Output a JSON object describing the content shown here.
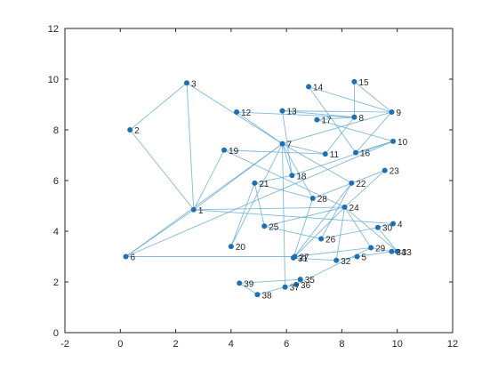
{
  "chart_data": {
    "type": "scatter",
    "title": "",
    "xlabel": "",
    "ylabel": "",
    "xlim": [
      -2,
      12
    ],
    "ylim": [
      0,
      12
    ],
    "xticks": [
      "-2",
      "0",
      "2",
      "4",
      "6",
      "8",
      "10",
      "12"
    ],
    "yticks": [
      "0",
      "2",
      "4",
      "6",
      "8",
      "10",
      "12"
    ],
    "grid": false,
    "colors": {
      "marker": "#1f6fb4",
      "edge": "#6aaed6",
      "axes": "#262626"
    },
    "nodes": [
      {
        "id": "1",
        "x": 2.65,
        "y": 4.85
      },
      {
        "id": "2",
        "x": 0.35,
        "y": 8.0
      },
      {
        "id": "3",
        "x": 2.4,
        "y": 9.85
      },
      {
        "id": "4",
        "x": 9.85,
        "y": 4.3
      },
      {
        "id": "5",
        "x": 8.55,
        "y": 3.0
      },
      {
        "id": "6",
        "x": 0.2,
        "y": 3.0
      },
      {
        "id": "7",
        "x": 5.85,
        "y": 7.45
      },
      {
        "id": "8",
        "x": 8.45,
        "y": 8.5
      },
      {
        "id": "9",
        "x": 9.8,
        "y": 8.7
      },
      {
        "id": "10",
        "x": 9.85,
        "y": 7.55
      },
      {
        "id": "11",
        "x": 7.4,
        "y": 7.05
      },
      {
        "id": "12",
        "x": 4.2,
        "y": 8.7
      },
      {
        "id": "13",
        "x": 5.85,
        "y": 8.75
      },
      {
        "id": "14",
        "x": 6.8,
        "y": 9.7
      },
      {
        "id": "15",
        "x": 8.45,
        "y": 9.9
      },
      {
        "id": "16",
        "x": 8.5,
        "y": 7.1
      },
      {
        "id": "17",
        "x": 7.1,
        "y": 8.4
      },
      {
        "id": "18",
        "x": 6.2,
        "y": 6.2
      },
      {
        "id": "19",
        "x": 3.75,
        "y": 7.2
      },
      {
        "id": "20",
        "x": 4.0,
        "y": 3.4
      },
      {
        "id": "21",
        "x": 4.85,
        "y": 5.9
      },
      {
        "id": "22",
        "x": 8.35,
        "y": 5.9
      },
      {
        "id": "23",
        "x": 9.55,
        "y": 6.4
      },
      {
        "id": "24",
        "x": 8.1,
        "y": 4.95
      },
      {
        "id": "25",
        "x": 5.2,
        "y": 4.2
      },
      {
        "id": "26",
        "x": 7.25,
        "y": 3.7
      },
      {
        "id": "27",
        "x": 6.3,
        "y": 3.0
      },
      {
        "id": "28",
        "x": 6.95,
        "y": 5.3
      },
      {
        "id": "29",
        "x": 9.05,
        "y": 3.35
      },
      {
        "id": "30",
        "x": 9.3,
        "y": 4.15
      },
      {
        "id": "31",
        "x": 6.25,
        "y": 2.95
      },
      {
        "id": "32",
        "x": 7.8,
        "y": 2.85
      },
      {
        "id": "33",
        "x": 10.0,
        "y": 3.2
      },
      {
        "id": "34",
        "x": 9.8,
        "y": 3.2
      },
      {
        "id": "35",
        "x": 6.5,
        "y": 2.1
      },
      {
        "id": "36",
        "x": 6.35,
        "y": 1.9
      },
      {
        "id": "37",
        "x": 5.95,
        "y": 1.8
      },
      {
        "id": "38",
        "x": 4.95,
        "y": 1.5
      },
      {
        "id": "39",
        "x": 4.3,
        "y": 1.95
      }
    ],
    "edges": [
      [
        "1",
        "3"
      ],
      [
        "1",
        "7"
      ],
      [
        "1",
        "6"
      ],
      [
        "1",
        "4"
      ],
      [
        "1",
        "24"
      ],
      [
        "1",
        "19"
      ],
      [
        "1",
        "2"
      ],
      [
        "2",
        "3"
      ],
      [
        "3",
        "7"
      ],
      [
        "6",
        "7"
      ],
      [
        "6",
        "10"
      ],
      [
        "6",
        "27"
      ],
      [
        "7",
        "11"
      ],
      [
        "7",
        "18"
      ],
      [
        "7",
        "9"
      ],
      [
        "7",
        "12"
      ],
      [
        "7",
        "37"
      ],
      [
        "7",
        "22"
      ],
      [
        "7",
        "28"
      ],
      [
        "8",
        "12"
      ],
      [
        "8",
        "15"
      ],
      [
        "8",
        "13"
      ],
      [
        "8",
        "17"
      ],
      [
        "8",
        "11"
      ],
      [
        "9",
        "14"
      ],
      [
        "9",
        "15"
      ],
      [
        "9",
        "13"
      ],
      [
        "9",
        "16"
      ],
      [
        "10",
        "16"
      ],
      [
        "10",
        "17"
      ],
      [
        "10",
        "18"
      ],
      [
        "11",
        "19"
      ],
      [
        "13",
        "18"
      ],
      [
        "14",
        "16"
      ],
      [
        "18",
        "21"
      ],
      [
        "21",
        "25"
      ],
      [
        "21",
        "20"
      ],
      [
        "21",
        "28"
      ],
      [
        "20",
        "7"
      ],
      [
        "22",
        "31"
      ],
      [
        "22",
        "26"
      ],
      [
        "23",
        "24"
      ],
      [
        "23",
        "28"
      ],
      [
        "24",
        "27"
      ],
      [
        "24",
        "25"
      ],
      [
        "24",
        "33"
      ],
      [
        "24",
        "32"
      ],
      [
        "24",
        "29"
      ],
      [
        "25",
        "26"
      ],
      [
        "26",
        "30"
      ],
      [
        "27",
        "29"
      ],
      [
        "29",
        "34"
      ],
      [
        "29",
        "36"
      ],
      [
        "30",
        "4"
      ],
      [
        "30",
        "33"
      ],
      [
        "5",
        "34"
      ],
      [
        "5",
        "32"
      ],
      [
        "32",
        "31"
      ],
      [
        "35",
        "39"
      ],
      [
        "36",
        "37"
      ],
      [
        "37",
        "38"
      ],
      [
        "38",
        "39"
      ],
      [
        "35",
        "36"
      ],
      [
        "19",
        "24"
      ],
      [
        "28",
        "31"
      ],
      [
        "33",
        "34"
      ]
    ]
  }
}
